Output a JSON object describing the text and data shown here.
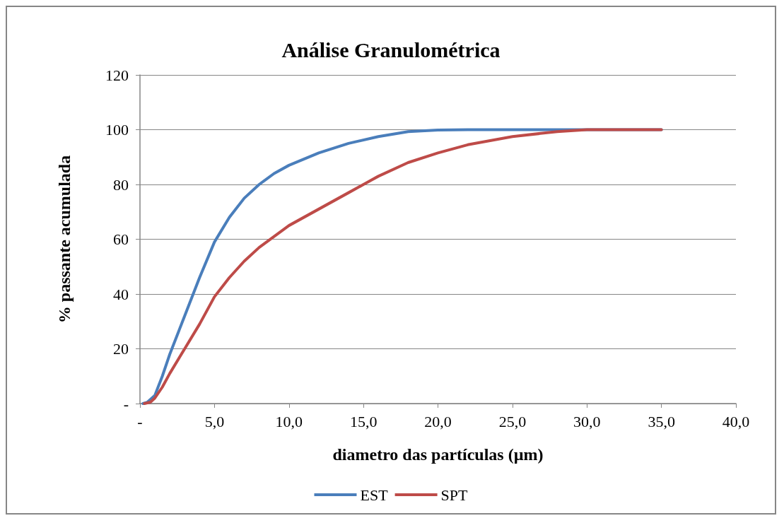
{
  "chart_data": {
    "type": "line",
    "title": "Análise Granulométrica",
    "xlabel": "diametro das partículas (µm)",
    "ylabel": "% passante acumulada",
    "xlim": [
      0,
      40
    ],
    "xticks": [
      {
        "value": 0,
        "label": "-"
      },
      {
        "value": 5,
        "label": "5,0"
      },
      {
        "value": 10,
        "label": "10,0"
      },
      {
        "value": 15,
        "label": "15,0"
      },
      {
        "value": 20,
        "label": "20,0"
      },
      {
        "value": 25,
        "label": "25,0"
      },
      {
        "value": 30,
        "label": "30,0"
      },
      {
        "value": 35,
        "label": "35,0"
      },
      {
        "value": 40,
        "label": "40,0"
      }
    ],
    "ylim": [
      0,
      120
    ],
    "yticks": [
      {
        "value": 0,
        "label": "-"
      },
      20,
      40,
      60,
      80,
      100,
      120
    ],
    "grid": "y",
    "legend": "bottom",
    "marker": "none",
    "line_style": "solid",
    "series": [
      {
        "name": "EST",
        "color": "#4a7ebb",
        "x": [
          0.2,
          0.5,
          1,
          1.5,
          2,
          3,
          4,
          5,
          6,
          7,
          8,
          9,
          10,
          12,
          14,
          16,
          18,
          20,
          22,
          25,
          35
        ],
        "values": [
          0,
          0.5,
          3,
          10,
          18,
          32,
          46,
          59,
          68,
          75,
          80,
          84,
          87,
          91.5,
          95,
          97.5,
          99.3,
          99.9,
          100,
          100,
          100
        ]
      },
      {
        "name": "SPT",
        "color": "#be4b48",
        "x": [
          0.3,
          0.7,
          1,
          1.5,
          2,
          3,
          4,
          5,
          6,
          7,
          8,
          9,
          10,
          12,
          14,
          15,
          16,
          18,
          20,
          22,
          25,
          28,
          30,
          32,
          35
        ],
        "values": [
          0,
          0.5,
          2,
          6,
          11,
          20,
          29,
          39,
          46,
          52,
          57,
          61,
          65,
          71,
          77,
          80,
          83,
          88,
          91.5,
          94.5,
          97.5,
          99.3,
          100,
          100,
          100
        ]
      }
    ]
  }
}
